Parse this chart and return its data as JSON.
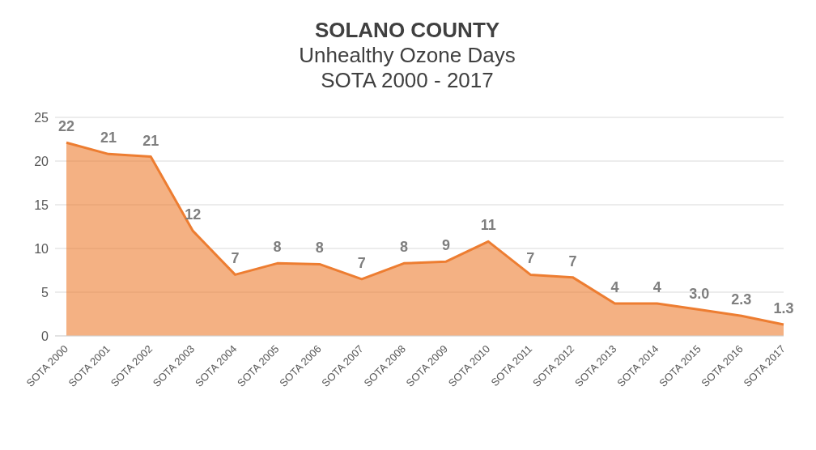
{
  "chart_data": {
    "type": "area",
    "title": "SOLANO COUNTY",
    "subtitle": "Unhealthy Ozone Days\nSOTA 2000 - 2017",
    "categories": [
      "SOTA 2000",
      "SOTA 2001",
      "SOTA 2002",
      "SOTA 2003",
      "SOTA 2004",
      "SOTA 2005",
      "SOTA 2006",
      "SOTA 2007",
      "SOTA 2008",
      "SOTA 2009",
      "SOTA 2010",
      "SOTA 2011",
      "SOTA 2012",
      "SOTA 2013",
      "SOTA 2014",
      "SOTA 2015",
      "SOTA 2016",
      "SOTA 2017"
    ],
    "series": [
      {
        "color": "#ed7d31",
        "values": [
          22.1,
          20.8,
          20.5,
          12,
          7,
          8.3,
          8.2,
          6.5,
          8.3,
          8.5,
          10.8,
          7,
          6.7,
          3.7,
          3.7,
          3.0,
          2.3,
          1.3
        ],
        "value_labels": [
          "22",
          "21",
          "21",
          "12",
          "7",
          "8",
          "8",
          "7",
          "8",
          "9",
          "11",
          "7",
          "7",
          "4",
          "4",
          "3.0",
          "2.3",
          "1.3"
        ]
      }
    ],
    "ylim": [
      0,
      25
    ],
    "yticks": [
      0,
      5,
      10,
      15,
      20,
      25
    ],
    "grid": "y"
  }
}
